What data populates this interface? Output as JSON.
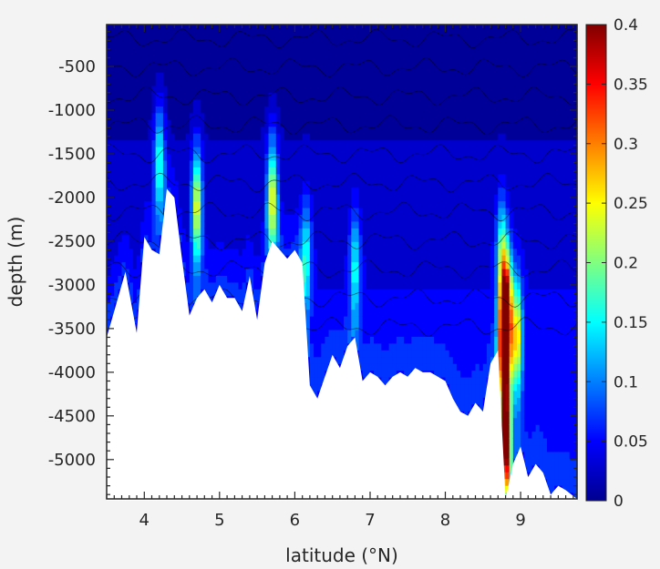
{
  "chart_data": {
    "type": "heatmap",
    "title": "",
    "xlabel": "latitude (°N)",
    "ylabel": "depth (m)",
    "xlim": [
      3.5,
      9.75
    ],
    "ylim": [
      -5450,
      -20
    ],
    "x_ticks": [
      4,
      5,
      6,
      7,
      8,
      9
    ],
    "x_tick_labels": [
      "4",
      "5",
      "6",
      "7",
      "8",
      "9"
    ],
    "y_ticks": [
      -500,
      -1000,
      -1500,
      -2000,
      -2500,
      -3000,
      -3500,
      -4000,
      -4500,
      -5000
    ],
    "y_tick_labels": [
      "-500",
      "-1000",
      "-1500",
      "-2000",
      "-2500",
      "-3000",
      "-3500",
      "-4000",
      "-4500",
      "-5000"
    ],
    "colorbar": {
      "min": 0,
      "max": 0.4,
      "colormap": "jet",
      "ticks": [
        0,
        0.05,
        0.1,
        0.15,
        0.2,
        0.25,
        0.3,
        0.35,
        0.4
      ],
      "tick_labels": [
        "0",
        "0.05",
        "0.1",
        "0.15",
        "0.2",
        "0.25",
        "0.3",
        "0.35",
        "0.4"
      ]
    },
    "grid": false,
    "seafloor": {
      "lat": [
        3.5,
        3.6,
        3.75,
        3.9,
        4.0,
        4.1,
        4.2,
        4.3,
        4.4,
        4.5,
        4.6,
        4.7,
        4.8,
        4.9,
        5.0,
        5.1,
        5.2,
        5.3,
        5.4,
        5.5,
        5.6,
        5.7,
        5.8,
        5.9,
        6.0,
        6.1,
        6.2,
        6.3,
        6.4,
        6.5,
        6.6,
        6.7,
        6.8,
        6.9,
        7.0,
        7.1,
        7.2,
        7.3,
        7.4,
        7.5,
        7.6,
        7.7,
        7.8,
        7.9,
        8.0,
        8.1,
        8.2,
        8.3,
        8.4,
        8.5,
        8.6,
        8.7,
        8.8,
        8.9,
        9.0,
        9.1,
        9.2,
        9.3,
        9.4,
        9.5,
        9.6,
        9.75
      ],
      "depth": [
        -3600,
        -3300,
        -2850,
        -3550,
        -2450,
        -2600,
        -2650,
        -1900,
        -2000,
        -2700,
        -3350,
        -3150,
        -3050,
        -3200,
        -3000,
        -3150,
        -3150,
        -3300,
        -2900,
        -3400,
        -2750,
        -2500,
        -2600,
        -2700,
        -2600,
        -2750,
        -4150,
        -4300,
        -4050,
        -3800,
        -3950,
        -3700,
        -3600,
        -4100,
        -4000,
        -4050,
        -4150,
        -4050,
        -4000,
        -4050,
        -3950,
        -4000,
        -4000,
        -4050,
        -4100,
        -4300,
        -4450,
        -4500,
        -4350,
        -4450,
        -3900,
        -3750,
        -5450,
        -5050,
        -4850,
        -5200,
        -5050,
        -5150,
        -5400,
        -5300,
        -5350,
        -5450
      ]
    },
    "hotspots": [
      {
        "lat": 4.2,
        "depth": -1600,
        "value": 0.15
      },
      {
        "lat": 4.7,
        "depth": -2100,
        "value": 0.22
      },
      {
        "lat": 5.7,
        "depth": -2000,
        "value": 0.22
      },
      {
        "lat": 6.15,
        "depth": -2700,
        "value": 0.13
      },
      {
        "lat": 6.8,
        "depth": -2800,
        "value": 0.12
      },
      {
        "lat": 8.75,
        "depth": -2700,
        "value": 0.16
      },
      {
        "lat": 8.82,
        "depth": -3300,
        "value": 0.3
      },
      {
        "lat": 8.78,
        "depth": -3700,
        "value": 0.4
      },
      {
        "lat": 8.8,
        "depth": -4800,
        "value": 0.4
      },
      {
        "lat": 8.95,
        "depth": -3600,
        "value": 0.22
      }
    ]
  }
}
